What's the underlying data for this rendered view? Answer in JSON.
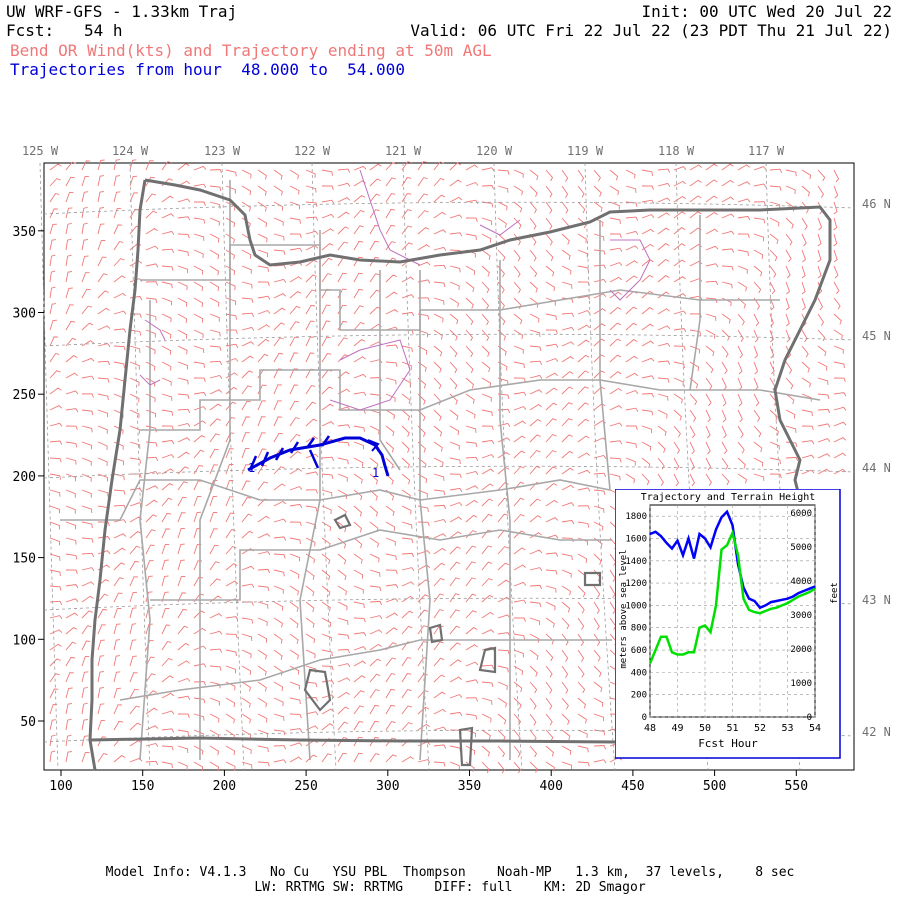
{
  "header": {
    "model_title": "UW WRF-GFS - 1.33km Traj",
    "init": "Init: 00 UTC Wed 20 Jul 22",
    "fcst_label": "Fcst:",
    "fcst_value": "54 h",
    "valid": "Valid: 06 UTC Fri 22 Jul 22 (23 PDT Thu 21 Jul 22)",
    "field_desc": "Bend OR Wind(kts) and Trajectory ending at 50m AGL",
    "traj_range": "Trajectories from hour  48.000 to  54.000"
  },
  "map": {
    "lon_labels": [
      "125 W",
      "124 W",
      "123 W",
      "122 W",
      "121 W",
      "120 W",
      "119 W",
      "118 W",
      "117 W"
    ],
    "lat_labels": [
      "46 N",
      "45 N",
      "44 N",
      "43 N",
      "42 N"
    ],
    "x_ticks": [
      "100",
      "150",
      "200",
      "250",
      "300",
      "350",
      "400",
      "450",
      "500",
      "550"
    ],
    "y_ticks": [
      "50",
      "100",
      "150",
      "200",
      "250",
      "300",
      "350"
    ],
    "trajectory_labels": [
      "1",
      "1"
    ],
    "colors": {
      "barbs": "#f07878",
      "counties": "#a8a8a8",
      "states": "#707070",
      "trajectory": "#0000d8",
      "lakes": "#c070c0"
    }
  },
  "inset": {
    "title": "Trajectory and Terrain Height",
    "xlabel": "Fcst Hour",
    "ylabel_left": "meters above sea level",
    "ylabel_right": "feet",
    "x_ticks": [
      "48",
      "49",
      "50",
      "51",
      "52",
      "53",
      "54"
    ],
    "y_left_ticks": [
      "0",
      "200",
      "400",
      "600",
      "800",
      "1000",
      "1200",
      "1400",
      "1600",
      "1800"
    ],
    "y_right_ticks": [
      "0",
      "1000",
      "2000",
      "3000",
      "4000",
      "5000",
      "6000"
    ]
  },
  "chart_data": {
    "type": "line",
    "title": "Trajectory and Terrain Height",
    "xlabel": "Fcst Hour",
    "ylabel": "meters above sea level",
    "xlim": [
      48,
      54
    ],
    "ylim": [
      0,
      1900
    ],
    "grid": true,
    "x": [
      48.0,
      48.2,
      48.4,
      48.6,
      48.8,
      49.0,
      49.2,
      49.4,
      49.6,
      49.8,
      50.0,
      50.2,
      50.4,
      50.6,
      50.8,
      51.0,
      51.2,
      51.4,
      51.6,
      51.8,
      52.0,
      52.2,
      52.4,
      52.6,
      52.8,
      53.0,
      53.2,
      53.4,
      53.6,
      53.8,
      54.0
    ],
    "series": [
      {
        "color": "#0000ff",
        "values": [
          1640,
          1660,
          1620,
          1560,
          1510,
          1580,
          1450,
          1600,
          1420,
          1640,
          1600,
          1520,
          1680,
          1790,
          1840,
          1720,
          1370,
          1160,
          1060,
          1040,
          980,
          1000,
          1030,
          1040,
          1050,
          1060,
          1080,
          1110,
          1130,
          1150,
          1170
        ]
      },
      {
        "color": "#00e000",
        "values": [
          480,
          600,
          720,
          720,
          580,
          560,
          560,
          580,
          580,
          800,
          820,
          760,
          1000,
          1500,
          1540,
          1650,
          1450,
          1060,
          960,
          940,
          930,
          950,
          970,
          980,
          1000,
          1020,
          1050,
          1080,
          1100,
          1120,
          1150
        ]
      }
    ]
  },
  "footer": {
    "line1": "Model Info: V4.1.3   No Cu   YSU PBL  Thompson    Noah-MP   1.3 km,  37 levels,    8 sec",
    "line2": "LW: RRTMG SW: RRTMG    DIFF: full    KM: 2D Smagor"
  }
}
